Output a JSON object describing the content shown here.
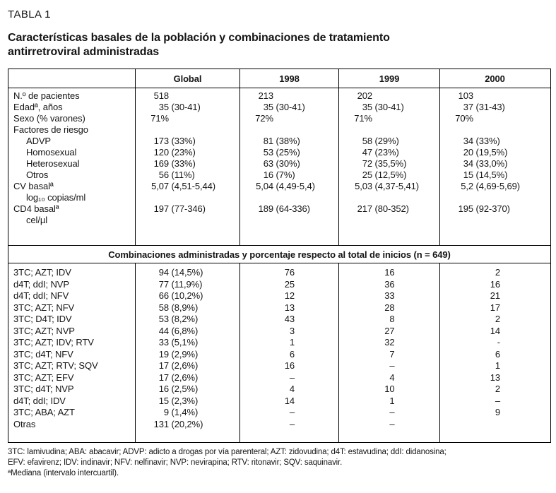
{
  "header": {
    "table_label": "TABLA 1",
    "title_line1": "Características basales de la población y combinaciones de tratamiento",
    "title_line2": "antirretroviral administradas"
  },
  "columns": {
    "global": "Global",
    "y1998": "1998",
    "y1999": "1999",
    "y2000": "2000"
  },
  "characteristics": {
    "rows": [
      {
        "label": "N.º de pacientes",
        "indent": false,
        "values": [
          "518",
          "213",
          "202",
          "103"
        ]
      },
      {
        "label": "Edadª, años",
        "indent": false,
        "values": [
          "35 (30-41)",
          "35 (30-41)",
          "35 (30-41)",
          "37 (31-43)"
        ]
      },
      {
        "label": "Sexo (% varones)",
        "indent": false,
        "values": [
          "71%",
          "72%",
          "71%",
          "70%"
        ]
      },
      {
        "label": "Factores de riesgo",
        "indent": false,
        "values": [
          "",
          "",
          "",
          ""
        ]
      },
      {
        "label": "ADVP",
        "indent": true,
        "values": [
          "173 (33%)",
          "81 (38%)",
          "58 (29%)",
          "34 (33%)"
        ]
      },
      {
        "label": "Homosexual",
        "indent": true,
        "values": [
          "120 (23%)",
          "53 (25%)",
          "47 (23%)",
          "20 (19,5%)"
        ]
      },
      {
        "label": "Heterosexual",
        "indent": true,
        "values": [
          "169 (33%)",
          "63 (30%)",
          "72 (35,5%)",
          "34 (33,0%)"
        ]
      },
      {
        "label": "Otros",
        "indent": true,
        "values": [
          "56 (11%)",
          "16 (7%)",
          "25 (12,5%)",
          "15 (14,5%)"
        ]
      },
      {
        "label": "CV basalª",
        "indent": false,
        "values": [
          "5,07 (4,51-5,44)",
          "5,04 (4,49-5,4)",
          "5,03 (4,37-5,41)",
          "5,2 (4,69-5,69)"
        ]
      },
      {
        "label": "log₁₀ copias/ml",
        "indent": true,
        "values": [
          "",
          "",
          "",
          ""
        ]
      },
      {
        "label": "CD4 basalª",
        "indent": false,
        "values": [
          "197 (77-346)",
          "189 (64-336)",
          "217 (80-352)",
          "195 (92-370)"
        ]
      },
      {
        "label": "cel/µl",
        "indent": true,
        "values": [
          "",
          "",
          "",
          ""
        ]
      }
    ]
  },
  "section_header": "Combinaciones administradas y porcentaje respecto al total de inicios (n = 649)",
  "combinations": {
    "rows": [
      {
        "label": "3TC; AZT; IDV",
        "values": [
          "94 (14,5%)",
          "76",
          "16",
          "2"
        ]
      },
      {
        "label": "d4T; ddI; NVP",
        "values": [
          "77 (11,9%)",
          "25",
          "36",
          "16"
        ]
      },
      {
        "label": "d4T; ddI; NFV",
        "values": [
          "66 (10,2%)",
          "12",
          "33",
          "21"
        ]
      },
      {
        "label": "3TC; AZT; NFV",
        "values": [
          "58 (8,9%)",
          "13",
          "28",
          "17"
        ]
      },
      {
        "label": "3TC; D4T; IDV",
        "values": [
          "53 (8,2%)",
          "43",
          "8",
          "2"
        ]
      },
      {
        "label": "3TC; AZT; NVP",
        "values": [
          "44 (6,8%)",
          "3",
          "27",
          "14"
        ]
      },
      {
        "label": "3TC; AZT; IDV; RTV",
        "values": [
          "33 (5,1%)",
          "1",
          "32",
          "-"
        ]
      },
      {
        "label": "3TC; d4T; NFV",
        "values": [
          "19 (2,9%)",
          "6",
          "7",
          "6"
        ]
      },
      {
        "label": "3TC; AZT; RTV; SQV",
        "values": [
          "17 (2,6%)",
          "16",
          "–",
          "1"
        ]
      },
      {
        "label": "3TC; AZT; EFV",
        "values": [
          "17 (2,6%)",
          "–",
          "4",
          "13"
        ]
      },
      {
        "label": "3TC; d4T; NVP",
        "values": [
          "16 (2,5%)",
          "4",
          "10",
          "2"
        ]
      },
      {
        "label": "d4T; ddI; IDV",
        "values": [
          "15 (2,3%)",
          "14",
          "1",
          "–"
        ]
      },
      {
        "label": "3TC; ABA; AZT",
        "values": [
          "9 (1,4%)",
          "–",
          "–",
          "9"
        ]
      },
      {
        "label": "Otras",
        "values": [
          "131 (20,2%)",
          "–",
          "–",
          ""
        ]
      }
    ]
  },
  "footnotes": {
    "line1": "3TC: lamivudina; ABA: abacavir; ADVP: adicto a drogas por vía parenteral; AZT: zidovudina; d4T: estavudina; ddI: didanosina;",
    "line2": "EFV: efavirenz; IDV: indinavir; NFV: nelfinavir; NVP: nevirapina; RTV: ritonavir; SQV: saquinavir.",
    "line3": "ªMediana (intervalo intercuartil)."
  }
}
